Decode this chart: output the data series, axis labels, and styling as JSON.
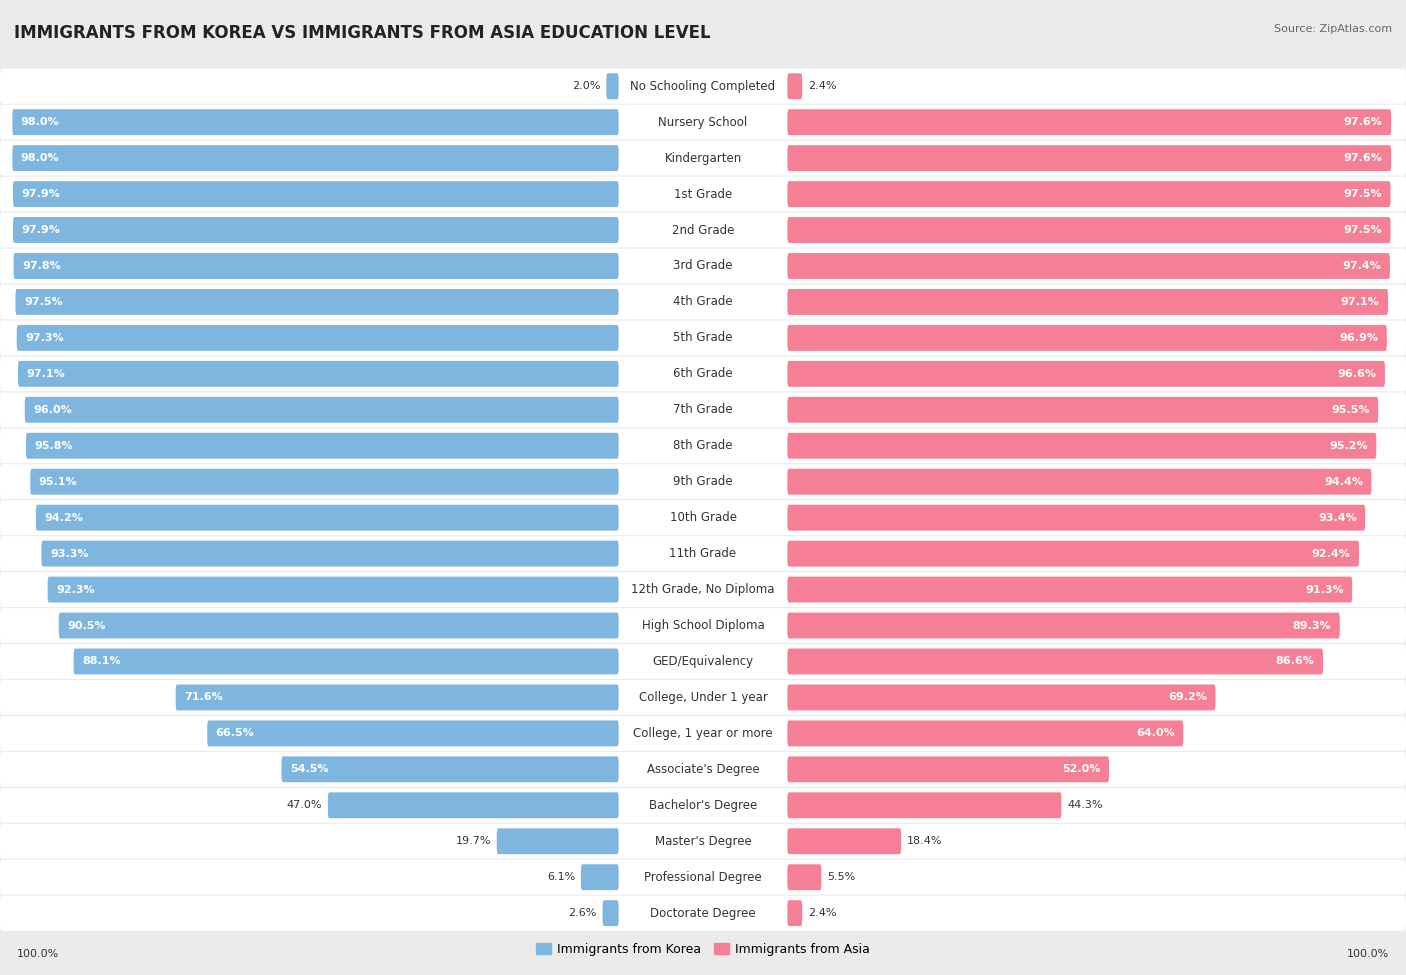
{
  "title": "IMMIGRANTS FROM KOREA VS IMMIGRANTS FROM ASIA EDUCATION LEVEL",
  "source": "Source: ZipAtlas.com",
  "categories": [
    "No Schooling Completed",
    "Nursery School",
    "Kindergarten",
    "1st Grade",
    "2nd Grade",
    "3rd Grade",
    "4th Grade",
    "5th Grade",
    "6th Grade",
    "7th Grade",
    "8th Grade",
    "9th Grade",
    "10th Grade",
    "11th Grade",
    "12th Grade, No Diploma",
    "High School Diploma",
    "GED/Equivalency",
    "College, Under 1 year",
    "College, 1 year or more",
    "Associate's Degree",
    "Bachelor's Degree",
    "Master's Degree",
    "Professional Degree",
    "Doctorate Degree"
  ],
  "korea_values": [
    2.0,
    98.0,
    98.0,
    97.9,
    97.9,
    97.8,
    97.5,
    97.3,
    97.1,
    96.0,
    95.8,
    95.1,
    94.2,
    93.3,
    92.3,
    90.5,
    88.1,
    71.6,
    66.5,
    54.5,
    47.0,
    19.7,
    6.1,
    2.6
  ],
  "asia_values": [
    2.4,
    97.6,
    97.6,
    97.5,
    97.5,
    97.4,
    97.1,
    96.9,
    96.6,
    95.5,
    95.2,
    94.4,
    93.4,
    92.4,
    91.3,
    89.3,
    86.6,
    69.2,
    64.0,
    52.0,
    44.3,
    18.4,
    5.5,
    2.4
  ],
  "korea_color": "#7EB6E0",
  "asia_color": "#F58096",
  "bg_color": "#EBEBEB",
  "row_bg": "#FFFFFF",
  "legend_korea": "Immigrants from Korea",
  "legend_asia": "Immigrants from Asia",
  "title_fontsize": 12,
  "label_fontsize": 8.5,
  "value_fontsize": 8.0
}
